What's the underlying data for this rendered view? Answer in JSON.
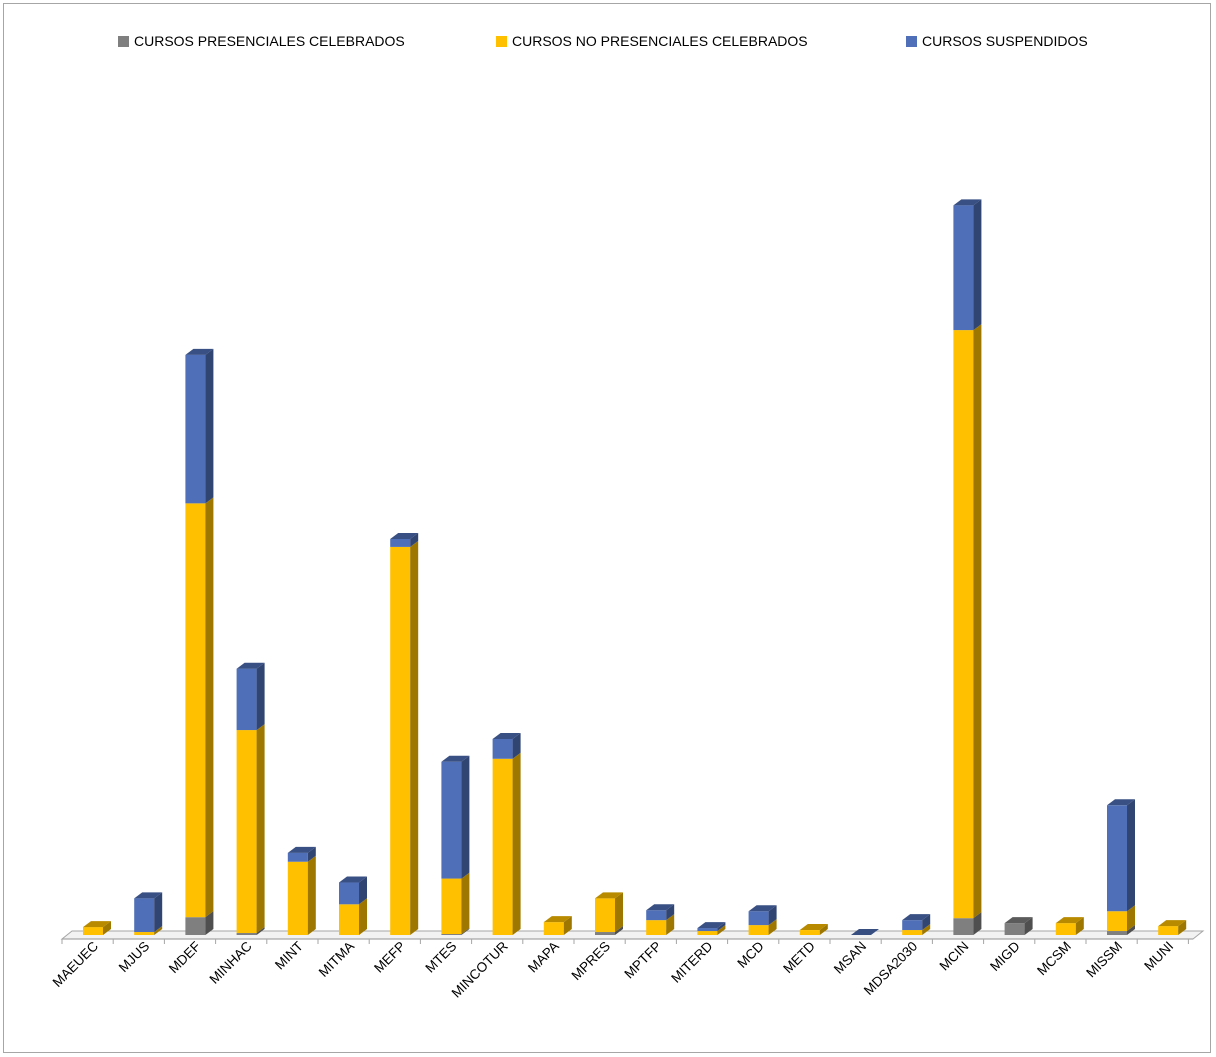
{
  "chart_data": {
    "type": "bar",
    "stacked": true,
    "three_d": true,
    "grid": false,
    "legend_position": "top",
    "categories": [
      "MAEUEC",
      "MJUS",
      "MDEF",
      "MINHAC",
      "MINT",
      "MITMA",
      "MEFP",
      "MTES",
      "MINCOTUR",
      "MAPA",
      "MPRES",
      "MPTFP",
      "MITERD",
      "MCD",
      "METD",
      "MSAN",
      "MDSA2030",
      "MCIN",
      "MIGD",
      "MCSM",
      "MISSM",
      "MUNI"
    ],
    "series": [
      {
        "name": "CURSOS PRESENCIALES CELEBRADOS",
        "color": "#7f7f7f",
        "values": [
          0,
          0,
          18,
          2,
          0,
          0,
          0,
          1,
          0,
          0,
          3,
          0,
          0,
          0,
          0,
          0,
          0,
          17,
          12,
          0,
          4,
          0
        ]
      },
      {
        "name": "CURSOS NO PRESENCIALES CELEBRADOS",
        "color": "#ffc000",
        "values": [
          8,
          3,
          418,
          205,
          74,
          31,
          392,
          56,
          178,
          13,
          34,
          15,
          4,
          10,
          5,
          0,
          5,
          594,
          0,
          12,
          20,
          9
        ]
      },
      {
        "name": "CURSOS SUSPENDIDOS",
        "color": "#4f6fb8",
        "values": [
          0,
          34,
          150,
          62,
          9,
          22,
          8,
          118,
          20,
          0,
          0,
          10,
          3,
          14,
          0,
          0,
          10,
          126,
          0,
          0,
          107,
          0
        ]
      }
    ]
  }
}
